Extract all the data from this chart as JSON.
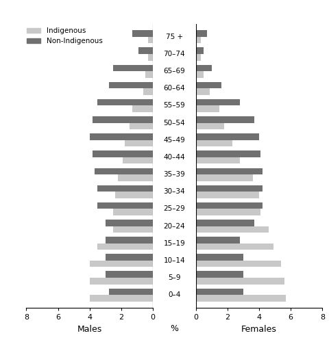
{
  "age_groups": [
    "0–4",
    "5–9",
    "10–14",
    "15–19",
    "20–24",
    "25–29",
    "30–34",
    "35–39",
    "40–44",
    "45–49",
    "50–54",
    "55–59",
    "60–64",
    "65–69",
    "70–74",
    "75 +"
  ],
  "males_indigenous": [
    4.0,
    4.0,
    4.0,
    3.5,
    2.5,
    2.5,
    2.4,
    2.2,
    1.9,
    1.8,
    1.5,
    1.3,
    0.6,
    0.5,
    0.3,
    0.3
  ],
  "males_nonindigenous": [
    2.8,
    3.0,
    3.0,
    3.0,
    3.0,
    3.5,
    3.5,
    3.7,
    3.8,
    4.0,
    3.8,
    3.5,
    2.8,
    2.5,
    0.9,
    1.3
  ],
  "females_indigenous": [
    5.7,
    5.6,
    5.4,
    4.9,
    4.6,
    4.1,
    4.0,
    3.6,
    2.8,
    2.3,
    1.8,
    1.5,
    0.9,
    0.5,
    0.3,
    0.3
  ],
  "females_nonindigenous": [
    3.0,
    3.0,
    3.0,
    2.8,
    3.7,
    4.2,
    4.2,
    4.2,
    4.1,
    4.0,
    3.7,
    2.8,
    1.6,
    1.0,
    0.5,
    0.7
  ],
  "color_indigenous": "#c8c8c8",
  "color_nonindigenous": "#707070",
  "bar_height": 0.38,
  "xlim": 8,
  "xlabel_left": "Males",
  "xlabel_right": "Females",
  "xlabel_center": "%",
  "legend_indigenous": "Indigenous",
  "legend_nonindigenous": "Non-Indigenous",
  "background_color": "#ffffff"
}
